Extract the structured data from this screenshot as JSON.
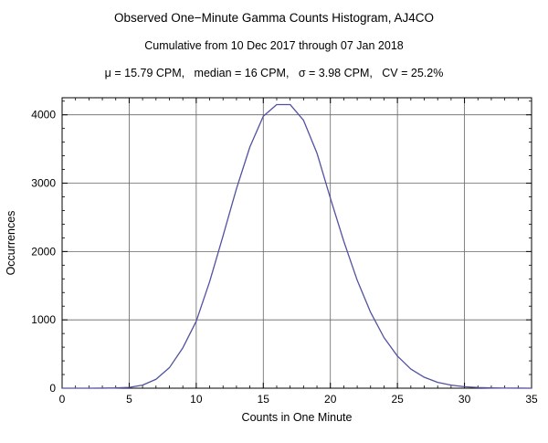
{
  "title": "Observed One−Minute Gamma Counts Histogram, AJ4CO",
  "subtitle": "Cumulative from 10 Dec 2017 through 07 Jan 2018",
  "stats": "μ = 15.79 CPM,   median = 16 CPM,   σ = 3.98 CPM,   CV = 25.2%",
  "chart_data": {
    "type": "line",
    "title": "Observed One−Minute Gamma Counts Histogram, AJ4CO",
    "subtitle": "Cumulative from 10 Dec 2017 through 07 Jan 2018",
    "annotation": "μ = 15.79 CPM, median = 16 CPM, σ = 3.98 CPM, CV = 25.2%",
    "xlabel": "Counts in One Minute",
    "ylabel": "Occurrences",
    "xlim": [
      0,
      35
    ],
    "ylim": [
      0,
      4250
    ],
    "x_ticks": [
      0,
      5,
      10,
      15,
      20,
      25,
      30,
      35
    ],
    "y_ticks": [
      0,
      1000,
      2000,
      3000,
      4000
    ],
    "x_minor_step": 1,
    "y_minor_step": 200,
    "grid": true,
    "grid_x": [
      5,
      10,
      15,
      20,
      25,
      30
    ],
    "grid_y": [
      1000,
      2000,
      3000,
      4000
    ],
    "line_color": "#5151a2",
    "frame_color": "#000000",
    "grid_color": "#666666",
    "x": [
      0,
      1,
      2,
      3,
      4,
      5,
      6,
      7,
      8,
      9,
      10,
      11,
      12,
      13,
      14,
      15,
      16,
      17,
      18,
      19,
      20,
      21,
      22,
      23,
      24,
      25,
      26,
      27,
      28,
      29,
      30,
      31,
      32,
      33,
      34,
      35
    ],
    "y": [
      0,
      0,
      0,
      1,
      4,
      12,
      45,
      130,
      300,
      590,
      980,
      1560,
      2230,
      2920,
      3530,
      3980,
      4150,
      4150,
      3920,
      3440,
      2780,
      2150,
      1580,
      1110,
      740,
      470,
      280,
      160,
      85,
      45,
      22,
      10,
      4,
      2,
      1,
      0
    ]
  }
}
